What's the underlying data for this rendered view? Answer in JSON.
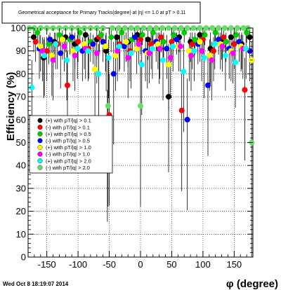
{
  "page": {
    "title_box": "Geometrical acceptance for Primary Tracks(degree) at |η| <= 1.0 at pT > 0.11",
    "timestamp": "Wed Oct  8 18:19:07 2014"
  },
  "chart_data": {
    "type": "scatter",
    "title": "Geometrical acceptance for Primary Tracks(degree) at |η| <= 1.0 at pT > 0.11",
    "xlabel": "φ (degree)",
    "ylabel": "Efficiency (%)",
    "xlim": [
      -180,
      180
    ],
    "ylim": [
      0,
      100
    ],
    "x_ticks": [
      -150,
      -100,
      -50,
      0,
      50,
      100,
      150
    ],
    "y_ticks": [
      0,
      10,
      20,
      30,
      40,
      50,
      60,
      70,
      80,
      90,
      100
    ],
    "grid": true,
    "legend_position": "middle-left",
    "series": [
      {
        "name": "(+) with pT/|q| > 0.1",
        "color": "#000000",
        "x": [
          -171,
          -155,
          -138,
          -120,
          -105,
          -88,
          -70,
          -55,
          -38,
          -20,
          -5,
          12,
          30,
          45,
          62,
          80,
          95,
          112,
          130,
          145,
          162,
          175
        ],
        "y": [
          96,
          87,
          94,
          96,
          93,
          97,
          95,
          90,
          96,
          94,
          97,
          95,
          91,
          70,
          96,
          94,
          97,
          91,
          95,
          96,
          93,
          96
        ],
        "err": [
          3,
          8,
          4,
          3,
          5,
          2,
          4,
          8,
          3,
          5,
          2,
          4,
          7,
          15,
          3,
          4,
          2,
          7,
          4,
          3,
          5,
          3
        ]
      },
      {
        "name": "(-) with pT/|q| > 0.1",
        "color": "#ff0000",
        "x": [
          -168,
          -150,
          -133,
          -117,
          -100,
          -83,
          -66,
          -50,
          -33,
          -17,
          0,
          17,
          33,
          50,
          66,
          83,
          100,
          117,
          133,
          150,
          167
        ],
        "y": [
          94,
          90,
          93,
          75,
          94,
          91,
          96,
          62,
          93,
          90,
          95,
          93,
          96,
          94,
          64,
          93,
          95,
          90,
          96,
          93,
          73
        ],
        "err": [
          4,
          6,
          5,
          15,
          4,
          6,
          3,
          18,
          5,
          6,
          3,
          5,
          3,
          4,
          16,
          5,
          3,
          6,
          3,
          5,
          14
        ]
      },
      {
        "name": "(+) with pT/|q| > 0.5",
        "color": "#00cc00",
        "x": [
          -165,
          -147,
          -130,
          -113,
          -97,
          -80,
          -63,
          -47,
          -30,
          -13,
          3,
          20,
          37,
          53,
          70,
          87,
          103,
          120,
          137,
          153,
          170
        ],
        "y": [
          98,
          93,
          97,
          95,
          98,
          94,
          97,
          96,
          98,
          95,
          97,
          98,
          94,
          97,
          98,
          95,
          97,
          98,
          94,
          97,
          98
        ],
        "err": [
          2,
          4,
          2,
          3,
          2,
          4,
          2,
          3,
          2,
          3,
          2,
          2,
          4,
          2,
          2,
          3,
          2,
          2,
          4,
          2,
          2
        ]
      },
      {
        "name": "(-) with pT/|q| > 0.5",
        "color": "#0000ff",
        "x": [
          -162,
          -145,
          -128,
          -110,
          -93,
          -76,
          -60,
          -43,
          -26,
          -9,
          8,
          25,
          42,
          58,
          75,
          92,
          108,
          125,
          142,
          158,
          175
        ],
        "y": [
          91,
          95,
          89,
          96,
          90,
          93,
          94,
          80,
          92,
          96,
          90,
          94,
          91,
          95,
          60,
          93,
          75,
          95,
          91,
          94,
          90
        ],
        "err": [
          6,
          3,
          7,
          3,
          6,
          4,
          4,
          14,
          5,
          3,
          6,
          4,
          6,
          3,
          18,
          4,
          14,
          3,
          6,
          4,
          6
        ]
      },
      {
        "name": "(+) with pT/|q| > 1.0",
        "color": "#ffff00",
        "x": [
          -160,
          -142,
          -125,
          -108,
          -90,
          -73,
          -56,
          -40,
          -23,
          -6,
          11,
          28,
          45,
          61,
          78,
          95,
          111,
          128,
          145,
          161,
          178
        ],
        "y": [
          92,
          88,
          95,
          90,
          93,
          82,
          92,
          88,
          94,
          91,
          89,
          93,
          84,
          92,
          90,
          94,
          88,
          93,
          90,
          92,
          86
        ],
        "err": [
          5,
          8,
          4,
          6,
          5,
          10,
          5,
          7,
          4,
          5,
          7,
          5,
          9,
          5,
          6,
          4,
          7,
          5,
          6,
          5,
          8
        ]
      },
      {
        "name": "(-) with pT/|q| > 1.0",
        "color": "#ff00ff",
        "x": [
          -157,
          -140,
          -122,
          -105,
          -88,
          -70,
          -53,
          -37,
          -20,
          -3,
          14,
          31,
          48,
          64,
          81,
          98,
          114,
          131,
          148,
          164
        ],
        "y": [
          90,
          86,
          92,
          88,
          91,
          89,
          55,
          90,
          87,
          93,
          89,
          91,
          87,
          92,
          88,
          90,
          86,
          92,
          89,
          91
        ],
        "err": [
          6,
          8,
          5,
          7,
          6,
          6,
          18,
          6,
          8,
          4,
          6,
          6,
          8,
          5,
          7,
          6,
          8,
          5,
          6,
          6
        ]
      },
      {
        "name": "(+) with pT/|q| > 2.0",
        "color": "#00ffff",
        "x": [
          -174,
          -154,
          -136,
          -118,
          -101,
          -84,
          -67,
          -51,
          -34,
          -15,
          2,
          19,
          36,
          52,
          69,
          86,
          102,
          119,
          136,
          152,
          169
        ],
        "y": [
          74,
          88,
          93,
          86,
          91,
          90,
          80,
          87,
          92,
          89,
          84,
          91,
          86,
          92,
          81,
          90,
          87,
          93,
          88,
          85,
          91
        ],
        "err": [
          12,
          8,
          5,
          8,
          6,
          6,
          13,
          8,
          5,
          7,
          10,
          6,
          8,
          5,
          12,
          6,
          8,
          5,
          7,
          9,
          6
        ]
      },
      {
        "name": "(-) with pT/|q| > 2.0",
        "color": "#66dd66",
        "x": [
          -178,
          -170,
          -160,
          -150,
          -140,
          -130,
          -120,
          -110,
          -100,
          -90,
          -80,
          -70,
          -60,
          -52,
          -45,
          -35,
          -25,
          -15,
          -5,
          0,
          5,
          15,
          25,
          35,
          45,
          55,
          65,
          75,
          85,
          95,
          105,
          115,
          125,
          135,
          145,
          155,
          165,
          172,
          178
        ],
        "y": [
          100,
          100,
          100,
          100,
          100,
          100,
          100,
          100,
          100,
          100,
          100,
          100,
          100,
          66,
          100,
          100,
          100,
          100,
          100,
          66,
          100,
          100,
          100,
          100,
          100,
          100,
          100,
          100,
          100,
          100,
          100,
          100,
          100,
          100,
          100,
          100,
          100,
          100,
          50
        ],
        "err": [
          0,
          0,
          0,
          0,
          0,
          0,
          0,
          0,
          0,
          0,
          0,
          0,
          0,
          20,
          0,
          0,
          0,
          0,
          0,
          20,
          0,
          0,
          0,
          0,
          0,
          0,
          0,
          0,
          0,
          0,
          0,
          0,
          0,
          0,
          0,
          0,
          0,
          0,
          35
        ]
      }
    ]
  }
}
